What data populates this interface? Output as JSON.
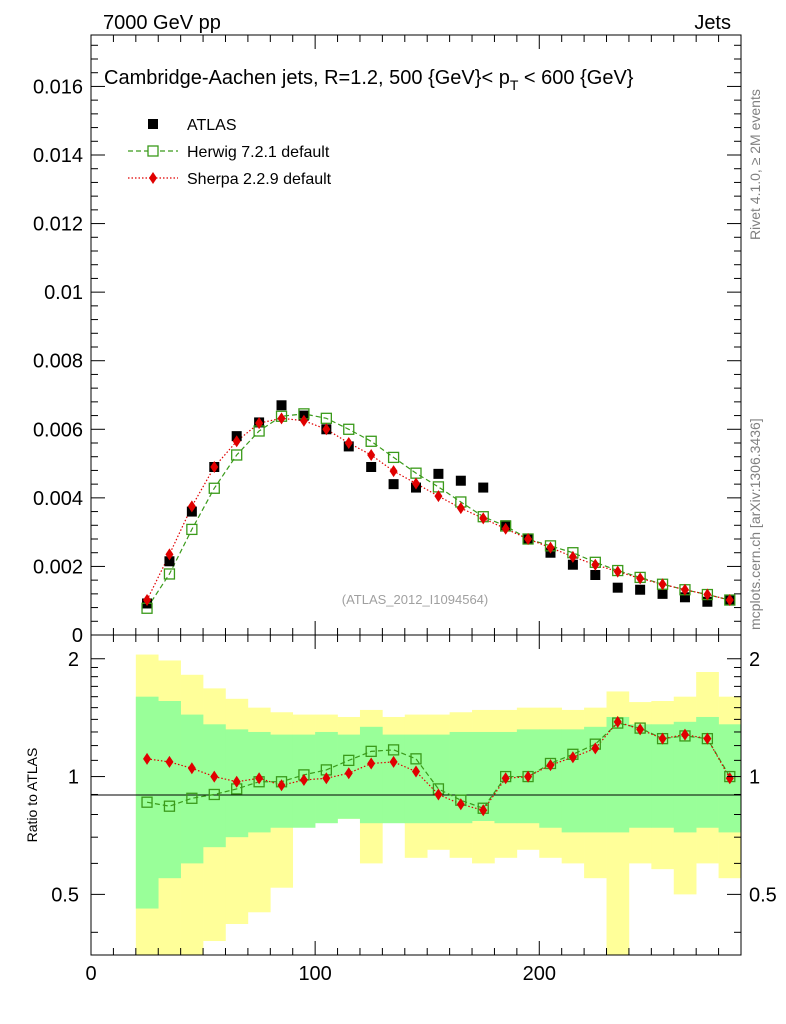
{
  "header": {
    "left": "7000 GeV pp",
    "right": "Jets"
  },
  "side_labels": {
    "rivet": "Rivet 4.1.0, ≥ 2M events",
    "mcplots": "mcplots.cern.ch [arXiv:1306.3436]"
  },
  "chart_data": [
    {
      "type": "scatter",
      "title": "Cambridge-Aachen jets, R=1.2, 500 {GeV}< p_T < 600 {GeV}",
      "title_main": "Cambridge-Aachen jets, R=1.2, 500 {GeV}< p",
      "title_sub": "T",
      "title_tail": " < 600 {GeV}",
      "watermark": "(ATLAS_2012_I1094564)",
      "xlim": [
        0,
        290
      ],
      "ylim": [
        0,
        0.0175
      ],
      "y_ticks": [
        "0",
        "0.002",
        "0.004",
        "0.006",
        "0.008",
        "0.01",
        "0.012",
        "0.014",
        "0.016"
      ],
      "legend": [
        "ATLAS",
        "Herwig 7.2.1 default",
        "Sherpa 2.2.9 default"
      ],
      "x": [
        25,
        35,
        45,
        55,
        65,
        75,
        85,
        95,
        105,
        115,
        125,
        135,
        145,
        155,
        165,
        175,
        185,
        195,
        205,
        215,
        225,
        235,
        245,
        255,
        265,
        275,
        285
      ],
      "series": [
        {
          "name": "ATLAS",
          "color": "#000000",
          "values": [
            0.00092,
            0.00215,
            0.0036,
            0.0049,
            0.0058,
            0.0062,
            0.0067,
            0.0064,
            0.006,
            0.0055,
            0.0049,
            0.0044,
            0.0043,
            0.0047,
            0.0045,
            0.0043,
            0.0032,
            0.0028,
            0.0024,
            0.00205,
            0.00175,
            0.00138,
            0.00132,
            0.0012,
            0.0011,
            0.00097,
            0.00103
          ]
        },
        {
          "name": "Herwig 7.2.1 default",
          "color": "#3a9a1a",
          "values": [
            0.00078,
            0.00178,
            0.00308,
            0.00428,
            0.00525,
            0.00595,
            0.00638,
            0.00645,
            0.00632,
            0.006,
            0.00565,
            0.00518,
            0.00472,
            0.00432,
            0.00388,
            0.00345,
            0.00318,
            0.0028,
            0.0026,
            0.0024,
            0.00212,
            0.00188,
            0.00168,
            0.00148,
            0.00132,
            0.00118,
            0.00102
          ]
        },
        {
          "name": "Sherpa 2.2.9 default",
          "color": "#e00000",
          "values": [
            0.00102,
            0.00235,
            0.00375,
            0.0049,
            0.00565,
            0.00618,
            0.00632,
            0.00625,
            0.006,
            0.0056,
            0.00525,
            0.00478,
            0.00442,
            0.00405,
            0.0037,
            0.0034,
            0.0031,
            0.0028,
            0.00255,
            0.00228,
            0.00205,
            0.00185,
            0.00165,
            0.00148,
            0.00132,
            0.00118,
            0.00102
          ]
        }
      ]
    },
    {
      "type": "scatter",
      "ylabel": "Ratio to ATLAS",
      "xlabel": "",
      "xlim": [
        0,
        290
      ],
      "ylim": [
        0.35,
        2.3
      ],
      "x_ticks": [
        "0",
        "100",
        "200"
      ],
      "y_ticks": [
        "0.5",
        "1",
        "2"
      ],
      "x": [
        25,
        35,
        45,
        55,
        65,
        75,
        85,
        95,
        105,
        115,
        125,
        135,
        145,
        155,
        165,
        175,
        185,
        195,
        205,
        215,
        225,
        235,
        245,
        255,
        265,
        275,
        285
      ],
      "bands": {
        "yellow_color": "#ffff99",
        "green_color": "#99ff99",
        "yellow_lo": [
          0.35,
          0.35,
          0.35,
          0.38,
          0.42,
          0.45,
          0.52,
          0.77,
          0.78,
          0.78,
          0.6,
          0.77,
          0.62,
          0.65,
          0.62,
          0.6,
          0.62,
          0.65,
          0.62,
          0.6,
          0.55,
          0.35,
          0.6,
          0.58,
          0.5,
          0.6,
          0.55
        ],
        "yellow_hi": [
          2.05,
          1.98,
          1.82,
          1.68,
          1.58,
          1.5,
          1.46,
          1.44,
          1.44,
          1.42,
          1.48,
          1.42,
          1.44,
          1.44,
          1.46,
          1.48,
          1.48,
          1.5,
          1.5,
          1.48,
          1.5,
          1.65,
          1.55,
          1.56,
          1.6,
          1.85,
          1.6
        ],
        "green_lo": [
          0.46,
          0.55,
          0.6,
          0.66,
          0.7,
          0.72,
          0.74,
          0.74,
          0.76,
          0.78,
          0.76,
          0.76,
          0.76,
          0.76,
          0.76,
          0.77,
          0.76,
          0.76,
          0.74,
          0.72,
          0.72,
          0.72,
          0.74,
          0.74,
          0.72,
          0.74,
          0.72
        ],
        "green_hi": [
          1.6,
          1.56,
          1.44,
          1.36,
          1.32,
          1.3,
          1.28,
          1.28,
          1.3,
          1.28,
          1.34,
          1.28,
          1.28,
          1.28,
          1.3,
          1.3,
          1.3,
          1.32,
          1.32,
          1.32,
          1.34,
          1.42,
          1.36,
          1.36,
          1.38,
          1.42,
          1.36
        ]
      },
      "series": [
        {
          "name": "Herwig 7.2.1 default",
          "color": "#3a9a1a",
          "values": [
            0.86,
            0.84,
            0.88,
            0.9,
            0.93,
            0.97,
            0.97,
            1.01,
            1.04,
            1.1,
            1.16,
            1.17,
            1.11,
            0.93,
            0.87,
            0.83,
            1.0,
            1.0,
            1.08,
            1.14,
            1.21,
            1.37,
            1.33,
            1.25,
            1.27,
            1.25,
            1.0
          ]
        },
        {
          "name": "Sherpa 2.2.9 default",
          "color": "#e00000",
          "values": [
            1.11,
            1.09,
            1.05,
            1.0,
            0.97,
            0.99,
            0.95,
            0.98,
            0.99,
            1.02,
            1.08,
            1.09,
            1.03,
            0.9,
            0.85,
            0.82,
            0.99,
            1.0,
            1.07,
            1.12,
            1.18,
            1.38,
            1.32,
            1.25,
            1.28,
            1.25,
            0.99
          ]
        }
      ]
    }
  ]
}
